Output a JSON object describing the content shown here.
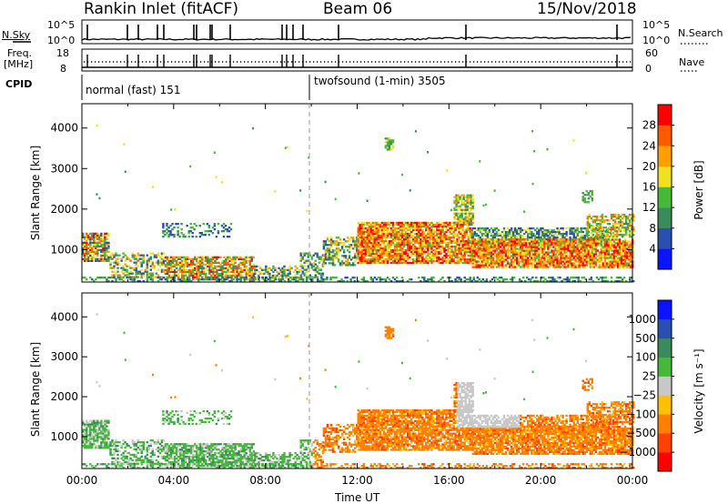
{
  "header": {
    "station": "Rankin Inlet (fitACF)",
    "beam": "Beam 06",
    "date": "15/Nov/2018"
  },
  "noise_panel": {
    "left_label": "N.Sky",
    "right_label": "N.Search",
    "ticks": [
      "10^5",
      "10^0"
    ],
    "right_ticks": [
      "10^5",
      "10^0"
    ]
  },
  "freq_panel": {
    "left_label_1": "Freq.",
    "left_label_2": "[MHz]",
    "left_ticks": [
      "18",
      "8"
    ],
    "right_label": "Nave",
    "right_ticks": [
      "60",
      "0"
    ]
  },
  "cpid_panel": {
    "label": "CPID",
    "mode_1": "normal (fast) 151",
    "mode_2": "twofsound (1-min) 3505"
  },
  "chart_data": [
    {
      "type": "heatmap",
      "title": "",
      "quantity": "Power",
      "ylabel": "Slant Range [km]",
      "xlabel": "",
      "ylim": [
        200,
        4600
      ],
      "yticks": [
        1000,
        2000,
        3000,
        4000
      ],
      "colorbar_label": "Power [dB]",
      "colorbar_ticks": [
        "4",
        "8",
        "12",
        "16",
        "20",
        "24",
        "28"
      ],
      "colors": [
        "#0a14ff",
        "#2a4fb0",
        "#3a8a5c",
        "#46b83a",
        "#f0e020",
        "#ffa000",
        "#ff5a00",
        "#ff0000"
      ]
    },
    {
      "type": "heatmap",
      "title": "",
      "quantity": "Velocity",
      "ylabel": "Slant Range [km]",
      "xlabel": "Time UT",
      "ylim": [
        200,
        4600
      ],
      "yticks": [
        1000,
        2000,
        3000,
        4000
      ],
      "xticks": [
        "00:00",
        "04:00",
        "08:00",
        "12:00",
        "16:00",
        "20:00",
        "00:00"
      ],
      "colorbar_label": "Velocity [m s⁻¹]",
      "colorbar_ticks": [
        "1000",
        "500",
        "100",
        "25",
        "−25",
        "−100",
        "−500",
        "−1000"
      ],
      "colors": [
        "#0a14ff",
        "#2a4fb0",
        "#3a8a5c",
        "#46b83a",
        "#c8c8c8",
        "#ffc000",
        "#ff8000",
        "#ff4000",
        "#ff0000"
      ]
    }
  ]
}
